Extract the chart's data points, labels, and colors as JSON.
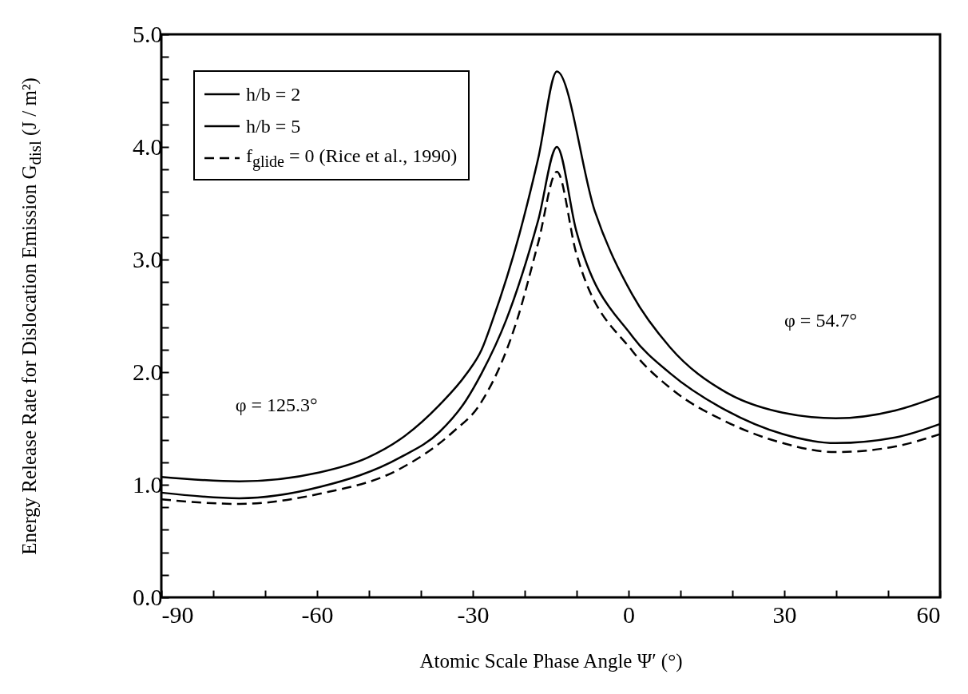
{
  "chart_data": {
    "type": "line",
    "xlabel": "Atomic Scale Phase Angle Ψ′ (°)",
    "ylabel": "Energy Release Rate for Dislocation Emission G$_{disl}$ (J / m²)",
    "xlim": [
      -90,
      60
    ],
    "ylim": [
      0,
      5
    ],
    "xticks": [
      -90,
      {
        "value": -80,
        "label": null
      },
      {
        "value": -70,
        "label": null
      },
      -60,
      {
        "value": -50,
        "label": null
      },
      {
        "value": -40,
        "label": null
      },
      -30,
      {
        "value": -20,
        "label": null
      },
      {
        "value": -10,
        "label": null
      },
      0,
      {
        "value": 10,
        "label": null
      },
      {
        "value": 20,
        "label": null
      },
      30,
      {
        "value": 40,
        "label": null
      },
      {
        "value": 50,
        "label": null
      },
      60
    ],
    "yticks": [
      {
        "value": 0,
        "label": "0.0"
      },
      {
        "value": 0.2,
        "label": null
      },
      {
        "value": 0.4,
        "label": null
      },
      {
        "value": 0.6,
        "label": null
      },
      {
        "value": 0.8,
        "label": null
      },
      {
        "value": 1,
        "label": "1.0"
      },
      {
        "value": 1.2,
        "label": null
      },
      {
        "value": 1.4,
        "label": null
      },
      {
        "value": 1.6,
        "label": null
      },
      {
        "value": 1.8,
        "label": null
      },
      {
        "value": 2,
        "label": "2.0"
      },
      {
        "value": 2.2,
        "label": null
      },
      {
        "value": 2.4,
        "label": null
      },
      {
        "value": 2.6,
        "label": null
      },
      {
        "value": 2.8,
        "label": null
      },
      {
        "value": 3,
        "label": "3.0"
      },
      {
        "value": 3.2,
        "label": null
      },
      {
        "value": 3.4,
        "label": null
      },
      {
        "value": 3.6,
        "label": null
      },
      {
        "value": 3.8,
        "label": null
      },
      {
        "value": 4,
        "label": "4.0"
      },
      {
        "value": 4.2,
        "label": null
      },
      {
        "value": 4.4,
        "label": null
      },
      {
        "value": 4.6,
        "label": null
      },
      {
        "value": 4.8,
        "label": null
      },
      {
        "value": 5,
        "label": "5.0"
      }
    ],
    "grid": false,
    "legend": "top left",
    "marker": "none",
    "series": [
      {
        "name": "h/b = 2",
        "color": "#000000",
        "line_style": "solid",
        "x": [
          -90,
          -75,
          -59.5,
          -50.3,
          -44.1,
          -36.4,
          -31.3,
          -28.3,
          -26.2,
          -21,
          -17.4,
          -13.8,
          -6.5,
          0.7,
          8,
          18.8,
          29.7,
          39.9,
          51.4,
          60
        ],
        "values": [
          1.07,
          1.03,
          1.11,
          1.24,
          1.4,
          1.71,
          1.98,
          2.2,
          2.46,
          3.23,
          3.9,
          4.67,
          3.43,
          2.69,
          2.22,
          1.82,
          1.64,
          1.59,
          1.66,
          1.79
        ]
      },
      {
        "name": "h/b = 5",
        "color": "#000000",
        "line_style": "solid",
        "x": [
          -90,
          -75,
          -59.5,
          -44.1,
          -36.4,
          -31.3,
          -28.3,
          -23.6,
          -17.4,
          -13.8,
          -10.1,
          0.7,
          8,
          18.8,
          29.7,
          39.9,
          51.4,
          60
        ],
        "values": [
          0.93,
          0.88,
          0.98,
          1.24,
          1.47,
          1.75,
          1.99,
          2.46,
          3.35,
          4.0,
          3.26,
          2.32,
          1.99,
          1.66,
          1.45,
          1.37,
          1.42,
          1.54
        ]
      },
      {
        "name": "f$_{glide}$ = 0 (Rice et al., 1990)",
        "color": "#000000",
        "line_style": "dashed",
        "x": [
          -90,
          -75,
          -59.5,
          -44.1,
          -33.8,
          -28.7,
          -21.5,
          -17.4,
          -13.8,
          -10.1,
          0.7,
          8,
          18.8,
          29.7,
          39.9,
          51.4,
          60
        ],
        "values": [
          0.87,
          0.83,
          0.92,
          1.14,
          1.47,
          1.71,
          2.46,
          3.15,
          3.78,
          3.06,
          2.19,
          1.86,
          1.56,
          1.37,
          1.29,
          1.34,
          1.45
        ]
      }
    ],
    "annotations": [
      "φ = 125.3°",
      "φ = 54.7°"
    ]
  }
}
